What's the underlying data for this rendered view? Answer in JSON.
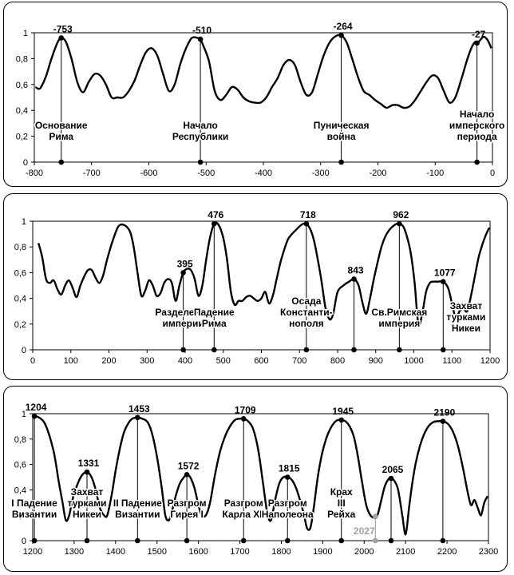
{
  "chart_data": [
    {
      "type": "line",
      "xlim": [
        -800,
        0
      ],
      "ylim": [
        0,
        1
      ],
      "x_ticks": [
        "-800",
        "-700",
        "-600",
        "-500",
        "-400",
        "-300",
        "-200",
        "-100",
        "0"
      ],
      "y_ticks": [
        "0",
        "0,2",
        "0,4",
        "0,6",
        "0,8",
        "1"
      ],
      "x_tick_values": [
        -800,
        -700,
        -600,
        -500,
        -400,
        -300,
        -200,
        -100,
        0
      ],
      "y_tick_values": [
        0,
        0.2,
        0.4,
        0.6,
        0.8,
        1
      ],
      "grid": false,
      "series": [
        {
          "x": [
            -798,
            -790,
            -780,
            -770,
            -760,
            -753,
            -745,
            -735,
            -725,
            -715,
            -705,
            -695,
            -685,
            -675,
            -665,
            -655,
            -645,
            -635,
            -625,
            -615,
            -605,
            -595,
            -585,
            -575,
            -565,
            -555,
            -545,
            -535,
            -525,
            -515,
            -510,
            -505,
            -495,
            -485,
            -475,
            -465,
            -455,
            -445,
            -435,
            -425,
            -415,
            -405,
            -395,
            -385,
            -375,
            -365,
            -355,
            -345,
            -335,
            -325,
            -315,
            -305,
            -295,
            -285,
            -275,
            -265,
            -255,
            -245,
            -235,
            -225,
            -215,
            -205,
            -195,
            -185,
            -175,
            -165,
            -155,
            -145,
            -135,
            -125,
            -115,
            -105,
            -95,
            -85,
            -75,
            -65,
            -55,
            -45,
            -37,
            -30,
            -27,
            -22,
            -15,
            -8,
            -2
          ],
          "y": [
            0.58,
            0.57,
            0.66,
            0.8,
            0.92,
            0.96,
            0.93,
            0.8,
            0.62,
            0.54,
            0.62,
            0.68,
            0.67,
            0.6,
            0.5,
            0.5,
            0.5,
            0.55,
            0.63,
            0.75,
            0.85,
            0.88,
            0.82,
            0.68,
            0.55,
            0.6,
            0.76,
            0.88,
            0.96,
            0.96,
            0.95,
            0.9,
            0.78,
            0.55,
            0.48,
            0.52,
            0.58,
            0.56,
            0.5,
            0.47,
            0.46,
            0.46,
            0.5,
            0.58,
            0.65,
            0.75,
            0.79,
            0.75,
            0.62,
            0.52,
            0.54,
            0.68,
            0.82,
            0.92,
            0.97,
            0.98,
            0.93,
            0.8,
            0.66,
            0.55,
            0.52,
            0.48,
            0.45,
            0.42,
            0.44,
            0.44,
            0.42,
            0.43,
            0.48,
            0.55,
            0.62,
            0.67,
            0.65,
            0.55,
            0.46,
            0.5,
            0.63,
            0.78,
            0.88,
            0.93,
            0.92,
            0.94,
            0.97,
            0.94,
            0.88
          ]
        }
      ],
      "markers": [
        {
          "x": -753,
          "y": 0.96,
          "label": "-753",
          "event": [
            "Основание",
            "Рима"
          ]
        },
        {
          "x": -510,
          "y": 0.95,
          "label": "-510",
          "event": [
            "Начало",
            "Республики"
          ]
        },
        {
          "x": -264,
          "y": 0.98,
          "label": "-264",
          "event": [
            "Пуническая",
            "война"
          ]
        },
        {
          "x": -27,
          "y": 0.92,
          "label": "-27",
          "event": [
            "Начало",
            "имперского",
            "периода"
          ]
        }
      ]
    },
    {
      "type": "line",
      "xlim": [
        0,
        1200
      ],
      "ylim": [
        0,
        1
      ],
      "x_ticks": [
        "0",
        "100",
        "200",
        "300",
        "400",
        "500",
        "600",
        "700",
        "800",
        "900",
        "1000",
        "1100",
        "1200"
      ],
      "y_ticks": [
        "0",
        "0,2",
        "0,4",
        "0,6",
        "0,8",
        "1"
      ],
      "x_tick_values": [
        0,
        100,
        200,
        300,
        400,
        500,
        600,
        700,
        800,
        900,
        1000,
        1100,
        1200
      ],
      "y_tick_values": [
        0,
        0.2,
        0.4,
        0.6,
        0.8,
        1
      ],
      "grid": false,
      "series": [
        {
          "x": [
            15,
            25,
            35,
            45,
            55,
            65,
            75,
            85,
            95,
            105,
            115,
            125,
            135,
            145,
            155,
            165,
            175,
            185,
            195,
            210,
            225,
            240,
            255,
            265,
            275,
            285,
            295,
            305,
            315,
            325,
            335,
            345,
            355,
            365,
            375,
            385,
            395,
            405,
            415,
            425,
            435,
            445,
            455,
            465,
            476,
            488,
            500,
            510,
            520,
            530,
            540,
            550,
            560,
            570,
            580,
            590,
            600,
            610,
            620,
            630,
            640,
            650,
            660,
            670,
            680,
            690,
            700,
            710,
            718,
            728,
            738,
            748,
            758,
            768,
            778,
            785,
            790,
            800,
            815,
            830,
            843,
            855,
            865,
            875,
            885,
            895,
            905,
            915,
            925,
            935,
            945,
            955,
            962,
            972,
            982,
            992,
            1002,
            1012,
            1022,
            1032,
            1042,
            1052,
            1062,
            1077,
            1090,
            1100,
            1110,
            1120,
            1130,
            1140,
            1150,
            1160,
            1170,
            1180,
            1190,
            1198
          ],
          "y": [
            0.83,
            0.72,
            0.55,
            0.52,
            0.54,
            0.47,
            0.43,
            0.5,
            0.54,
            0.48,
            0.41,
            0.5,
            0.57,
            0.62,
            0.62,
            0.56,
            0.52,
            0.58,
            0.7,
            0.85,
            0.96,
            0.97,
            0.92,
            0.8,
            0.6,
            0.42,
            0.46,
            0.54,
            0.5,
            0.42,
            0.44,
            0.52,
            0.55,
            0.52,
            0.38,
            0.5,
            0.6,
            0.63,
            0.62,
            0.55,
            0.42,
            0.5,
            0.7,
            0.87,
            0.98,
            0.97,
            0.87,
            0.7,
            0.45,
            0.35,
            0.38,
            0.38,
            0.41,
            0.42,
            0.4,
            0.38,
            0.4,
            0.45,
            0.36,
            0.42,
            0.55,
            0.68,
            0.78,
            0.86,
            0.9,
            0.93,
            0.96,
            0.98,
            0.98,
            0.94,
            0.85,
            0.7,
            0.53,
            0.33,
            0.24,
            0.25,
            0.3,
            0.45,
            0.5,
            0.53,
            0.55,
            0.5,
            0.37,
            0.28,
            0.4,
            0.55,
            0.68,
            0.8,
            0.88,
            0.93,
            0.96,
            0.98,
            0.98,
            0.96,
            0.88,
            0.75,
            0.52,
            0.2,
            0.28,
            0.45,
            0.52,
            0.53,
            0.53,
            0.53,
            0.48,
            0.36,
            0.25,
            0.3,
            0.32,
            0.3,
            0.42,
            0.57,
            0.72,
            0.82,
            0.9,
            0.95
          ]
        }
      ],
      "markers": [
        {
          "x": 395,
          "y": 0.6,
          "label": "395",
          "event": [
            "Разделение",
            "империи"
          ]
        },
        {
          "x": 476,
          "y": 0.98,
          "label": "476",
          "event": [
            "Падение",
            "Рима"
          ]
        },
        {
          "x": 718,
          "y": 0.98,
          "label": "718",
          "event": [
            "Осада",
            "Константи-",
            "нополя"
          ]
        },
        {
          "x": 843,
          "y": 0.55,
          "label": "843",
          "event": []
        },
        {
          "x": 962,
          "y": 0.98,
          "label": "962",
          "event": [
            "Св.Римская",
            "империя"
          ]
        },
        {
          "x": 1077,
          "y": 0.53,
          "label": "1077",
          "event": []
        }
      ],
      "annotations": [
        {
          "x": 843,
          "lines": []
        },
        {
          "x": 1137,
          "lines": [
            "Захват",
            "турками",
            "Никеи"
          ]
        }
      ]
    },
    {
      "type": "line",
      "xlim": [
        1200,
        2300
      ],
      "ylim": [
        0,
        1
      ],
      "x_ticks": [
        "1200",
        "1300",
        "1400",
        "1500",
        "1600",
        "1700",
        "1800",
        "1900",
        "2000",
        "2100",
        "2200",
        "2300"
      ],
      "y_ticks": [
        "0",
        "0,2",
        "0,4",
        "0,6",
        "0,8",
        "1"
      ],
      "x_tick_values": [
        1200,
        1300,
        1400,
        1500,
        1600,
        1700,
        1800,
        1900,
        2000,
        2100,
        2200,
        2300
      ],
      "y_tick_values": [
        0,
        0.2,
        0.4,
        0.6,
        0.8,
        1
      ],
      "grid": false,
      "series": [
        {
          "x": [
            1200,
            1204,
            1215,
            1228,
            1240,
            1252,
            1262,
            1272,
            1280,
            1288,
            1298,
            1310,
            1320,
            1331,
            1342,
            1352,
            1362,
            1372,
            1380,
            1390,
            1400,
            1410,
            1420,
            1430,
            1440,
            1453,
            1465,
            1478,
            1490,
            1502,
            1512,
            1520,
            1528,
            1535,
            1545,
            1555,
            1565,
            1572,
            1580,
            1590,
            1600,
            1608,
            1618,
            1628,
            1640,
            1652,
            1664,
            1676,
            1688,
            1698,
            1709,
            1720,
            1732,
            1744,
            1756,
            1766,
            1775,
            1785,
            1795,
            1805,
            1815,
            1825,
            1835,
            1845,
            1855,
            1862,
            1870,
            1878,
            1888,
            1898,
            1908,
            1918,
            1928,
            1936,
            1945,
            1955,
            1965,
            1975,
            1985,
            1995,
            2005,
            2015,
            2025,
            2032,
            2040,
            2050,
            2060,
            2065,
            2073,
            2082,
            2092,
            2100,
            2108,
            2116,
            2125,
            2135,
            2145,
            2155,
            2165,
            2175,
            2190,
            2202,
            2214,
            2226,
            2238,
            2250,
            2258,
            2266,
            2274,
            2282,
            2290,
            2298
          ],
          "y": [
            0.97,
            0.98,
            0.97,
            0.93,
            0.83,
            0.68,
            0.48,
            0.3,
            0.16,
            0.2,
            0.35,
            0.46,
            0.52,
            0.54,
            0.5,
            0.4,
            0.26,
            0.2,
            0.2,
            0.35,
            0.55,
            0.72,
            0.85,
            0.92,
            0.96,
            0.97,
            0.96,
            0.93,
            0.82,
            0.62,
            0.4,
            0.2,
            0.16,
            0.22,
            0.35,
            0.45,
            0.5,
            0.52,
            0.5,
            0.42,
            0.28,
            0.2,
            0.2,
            0.3,
            0.52,
            0.7,
            0.82,
            0.9,
            0.95,
            0.96,
            0.96,
            0.94,
            0.88,
            0.72,
            0.45,
            0.22,
            0.16,
            0.32,
            0.45,
            0.5,
            0.5,
            0.48,
            0.42,
            0.32,
            0.2,
            0.1,
            0.1,
            0.25,
            0.5,
            0.68,
            0.8,
            0.88,
            0.93,
            0.95,
            0.95,
            0.94,
            0.9,
            0.82,
            0.66,
            0.46,
            0.28,
            0.2,
            0.18,
            0.2,
            0.3,
            0.43,
            0.49,
            0.49,
            0.47,
            0.4,
            0.2,
            0.05,
            0.25,
            0.45,
            0.62,
            0.75,
            0.84,
            0.9,
            0.93,
            0.94,
            0.94,
            0.92,
            0.86,
            0.75,
            0.58,
            0.38,
            0.28,
            0.32,
            0.26,
            0.2,
            0.3,
            0.35
          ]
        }
      ],
      "markers": [
        {
          "x": 1204,
          "y": 0.98,
          "label": "1204",
          "event": [
            "I Падение",
            "Византии"
          ]
        },
        {
          "x": 1331,
          "y": 0.54,
          "label": "1331",
          "event": [
            "Захват",
            "турками",
            "Никеи"
          ]
        },
        {
          "x": 1453,
          "y": 0.97,
          "label": "1453",
          "event": [
            "II Падение",
            "Византии"
          ]
        },
        {
          "x": 1572,
          "y": 0.52,
          "label": "1572",
          "event": [
            "Разгром",
            "Гирея I"
          ]
        },
        {
          "x": 1709,
          "y": 0.96,
          "label": "1709",
          "event": [
            "Разгром",
            "Карла XII"
          ]
        },
        {
          "x": 1815,
          "y": 0.5,
          "label": "1815",
          "event": [
            "Разгром",
            "Наполеона"
          ]
        },
        {
          "x": 1945,
          "y": 0.95,
          "label": "1945",
          "event": [
            "Крах",
            "III",
            "Рейха"
          ]
        },
        {
          "x": 2065,
          "y": 0.49,
          "label": "2065",
          "event": []
        },
        {
          "x": 2190,
          "y": 0.94,
          "label": "2190",
          "event": []
        }
      ],
      "forecast": {
        "x": 2027,
        "y": 0.19,
        "label": "2027",
        "color": "#a0a0a0"
      }
    }
  ],
  "colors": {
    "line": "#000000",
    "forecast": "#a0a0a0",
    "background": "#ffffff"
  }
}
